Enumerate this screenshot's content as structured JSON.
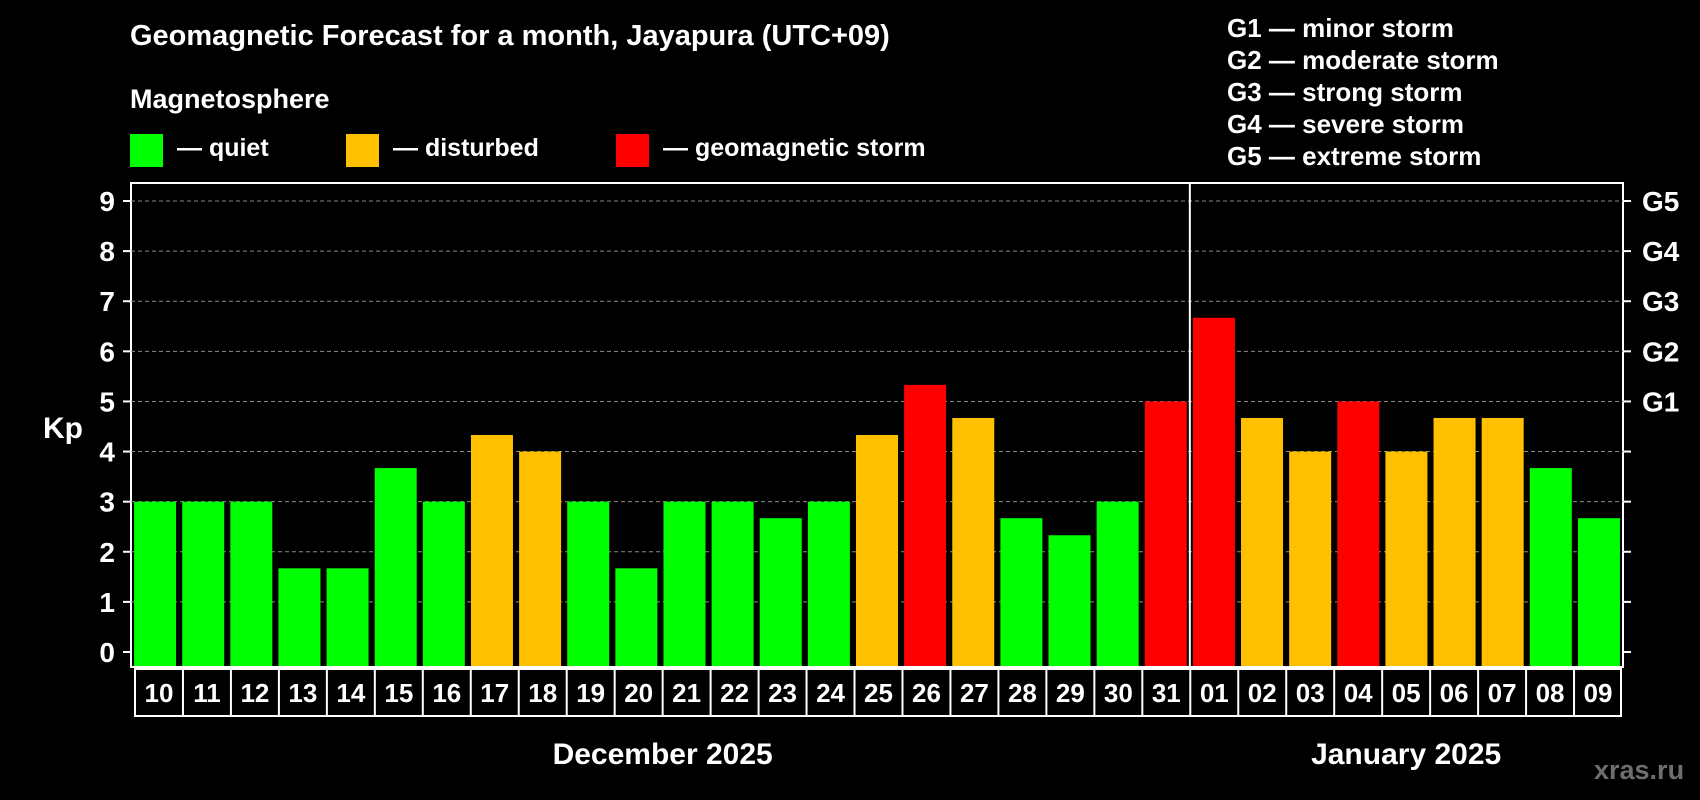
{
  "title": "Geomagnetic Forecast for a month, Jayapura (UTC+09)",
  "legend": {
    "heading": "Magnetosphere",
    "items": [
      {
        "label": "— quiet",
        "color": "#00ff00"
      },
      {
        "label": "— disturbed",
        "color": "#ffc000"
      },
      {
        "label": "— geomagnetic storm",
        "color": "#ff0000"
      }
    ]
  },
  "g_scale": [
    "G1 — minor storm",
    "G2 — moderate storm",
    "G3 — strong storm",
    "G4 — severe storm",
    "G5 — extreme storm"
  ],
  "watermark": "xras.ru",
  "colors": {
    "quiet": "#00ff00",
    "disturbed": "#ffc000",
    "storm": "#ff0000"
  },
  "chart_data": {
    "type": "bar",
    "title": "Geomagnetic Forecast for a month, Jayapura (UTC+09)",
    "ylabel": "Kp",
    "ylim": [
      0,
      9
    ],
    "yticks": [
      "0",
      "1",
      "2",
      "3",
      "4",
      "5",
      "6",
      "7",
      "8",
      "9"
    ],
    "right_ticks": [
      {
        "value": 5,
        "label": "G1"
      },
      {
        "value": 6,
        "label": "G2"
      },
      {
        "value": 7,
        "label": "G3"
      },
      {
        "value": 8,
        "label": "G4"
      },
      {
        "value": 9,
        "label": "G5"
      }
    ],
    "grid": true,
    "categories": [
      "10",
      "11",
      "12",
      "13",
      "14",
      "15",
      "16",
      "17",
      "18",
      "19",
      "20",
      "21",
      "22",
      "23",
      "24",
      "25",
      "26",
      "27",
      "28",
      "29",
      "30",
      "31",
      "01",
      "02",
      "03",
      "04",
      "05",
      "06",
      "07",
      "08",
      "09"
    ],
    "values": [
      3,
      3,
      3,
      1.67,
      1.67,
      3.67,
      3,
      4.33,
      4,
      3,
      1.67,
      3,
      3,
      2.67,
      3,
      4.33,
      5.33,
      4.67,
      2.67,
      2.33,
      3,
      5,
      6.67,
      4.67,
      4,
      5,
      4,
      4.67,
      4.67,
      3.67,
      2.67
    ],
    "levels": [
      "quiet",
      "quiet",
      "quiet",
      "quiet",
      "quiet",
      "quiet",
      "quiet",
      "disturbed",
      "disturbed",
      "quiet",
      "quiet",
      "quiet",
      "quiet",
      "quiet",
      "quiet",
      "disturbed",
      "storm",
      "disturbed",
      "quiet",
      "quiet",
      "quiet",
      "storm",
      "storm",
      "disturbed",
      "disturbed",
      "storm",
      "disturbed",
      "disturbed",
      "disturbed",
      "quiet",
      "quiet"
    ],
    "month_labels": [
      {
        "label": "December 2025",
        "first_index": 0,
        "last_index": 21
      },
      {
        "label": "January 2025",
        "first_index": 22,
        "last_index": 30
      }
    ],
    "divider_after_index": 21
  }
}
